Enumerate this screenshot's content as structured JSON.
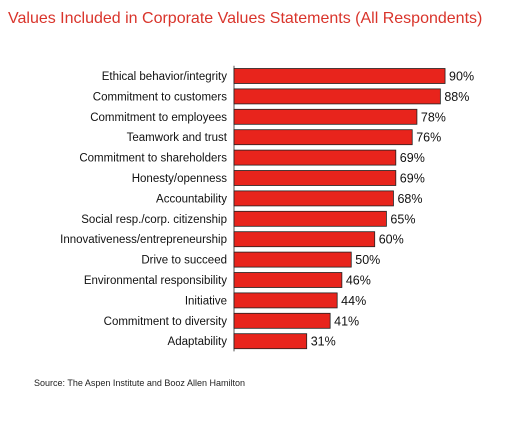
{
  "chart_data": {
    "type": "bar",
    "orientation": "horizontal",
    "title": "Values Included in Corporate Values Statements (All Respondents)",
    "categories": [
      "Ethical behavior/integrity",
      "Commitment to customers",
      "Commitment to employees",
      "Teamwork and trust",
      "Commitment to shareholders",
      "Honesty/openness",
      "Accountability",
      "Social resp./corp. citizenship",
      "Innovativeness/entrepreneurship",
      "Drive to succeed",
      "Environmental responsibility",
      "Initiative",
      "Commitment to diversity",
      "Adaptability"
    ],
    "values": [
      90,
      88,
      78,
      76,
      69,
      69,
      68,
      65,
      60,
      50,
      46,
      44,
      41,
      31
    ],
    "value_labels": [
      "90%",
      "88%",
      "78%",
      "76%",
      "69%",
      "69%",
      "68%",
      "65%",
      "60%",
      "50%",
      "46%",
      "44%",
      "41%",
      "31%"
    ],
    "unit": "%",
    "xlim": [
      0,
      100
    ],
    "grid": false,
    "legend": "none",
    "bar_color": "#e8241c",
    "bar_outline_color": "#222222",
    "title_color": "#d9342b",
    "source": "Source: The Aspen Institute and Booz Allen Hamilton"
  }
}
